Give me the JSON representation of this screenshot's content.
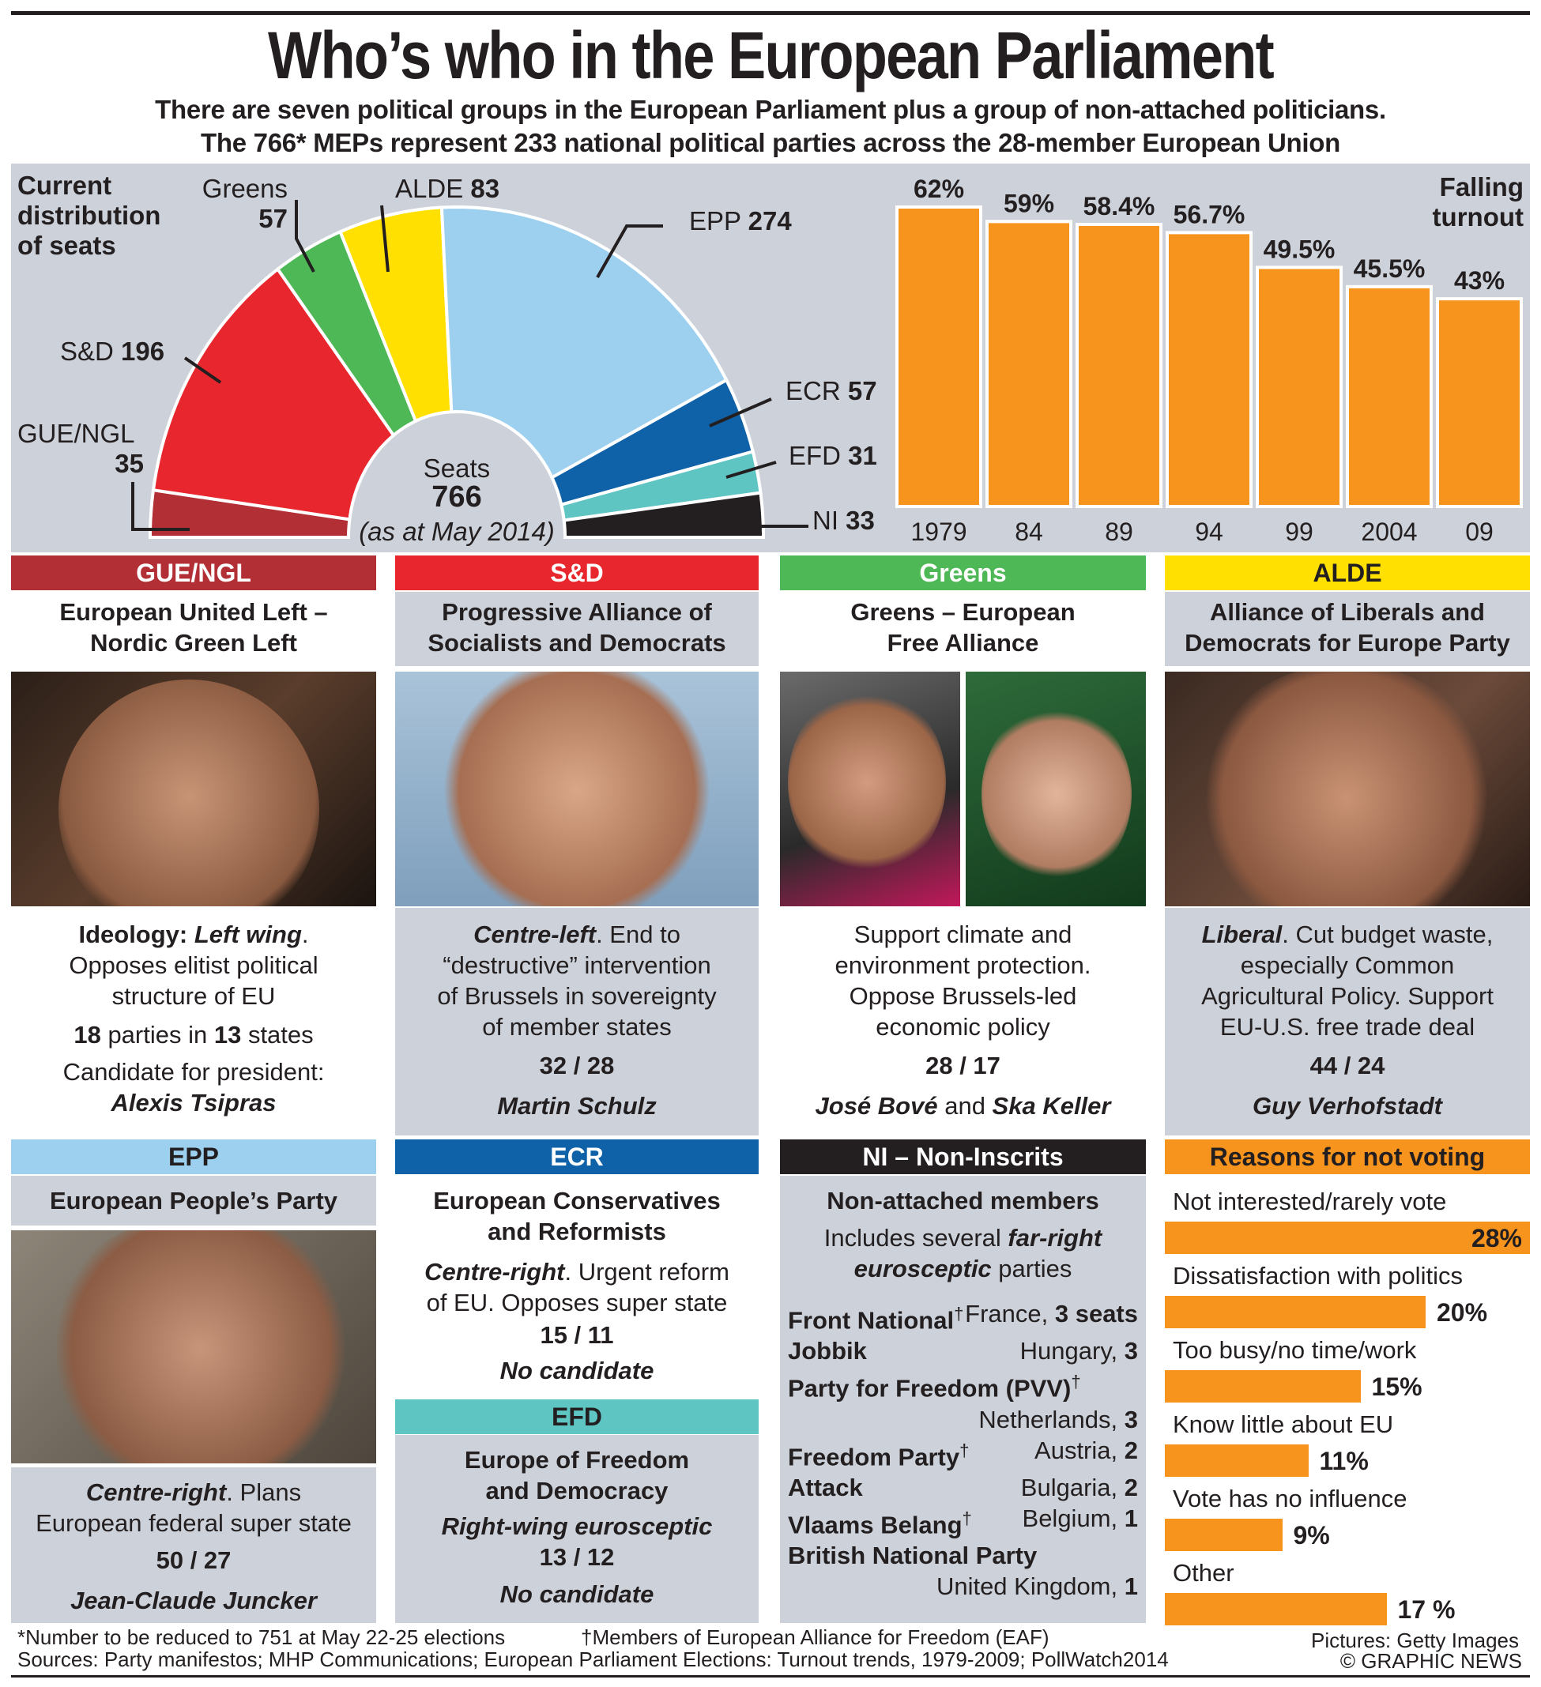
{
  "header": {
    "title": "Who’s who in the European Parliament",
    "subtitle_1": "There are seven political groups in the European Parliament plus a group of non-attached politicians.",
    "subtitle_2": "The 766* MEPs represent 233 national political parties across the 28-member European Union"
  },
  "chart_data": [
    {
      "type": "pie",
      "variant": "semicircle",
      "title": "Current\ndistribution\nof seats",
      "categories": [
        "GUE/NGL",
        "S&D",
        "Greens",
        "ALDE",
        "EPP",
        "ECR",
        "EFD",
        "NI"
      ],
      "values": [
        35,
        196,
        57,
        83,
        274,
        57,
        31,
        33
      ],
      "colors": [
        "#b22f36",
        "#e8262d",
        "#4eb857",
        "#ffe000",
        "#9dd0ef",
        "#1062a8",
        "#5ec5c3",
        "#231f20"
      ],
      "center_label": "Seats",
      "center_total": "766",
      "center_note": "(as at May 2014)"
    },
    {
      "type": "bar",
      "title": "Falling\nturnout",
      "categories": [
        "1979",
        "84",
        "89",
        "94",
        "99",
        "2004",
        "09"
      ],
      "values": [
        62,
        59,
        58.4,
        56.7,
        49.5,
        45.5,
        43
      ],
      "labels": [
        "62%",
        "59%",
        "58.4%",
        "56.7%",
        "49.5%",
        "45.5%",
        "43%"
      ],
      "ylim": [
        0,
        62
      ],
      "color": "#f7941d"
    },
    {
      "type": "bar",
      "orientation": "horizontal",
      "title": "Reasons for not voting",
      "categories": [
        "Not interested/rarely vote",
        "Dissatisfaction with politics",
        "Too busy/no time/work",
        "Know little about EU",
        "Vote has no influence",
        "Other"
      ],
      "values": [
        28,
        20,
        15,
        11,
        9,
        17
      ],
      "labels": [
        "28%",
        "20%",
        "15%",
        "11%",
        "9%",
        "17 %"
      ],
      "color": "#f7941d"
    }
  ],
  "groups": {
    "gue": {
      "header": "GUE/NGL",
      "name": "European United Left –\nNordic Green Left",
      "lead_b": "Ideology: ",
      "lead_bi": "Left wing",
      "desc": ".\nOpposes elitist political\nstructure of EU",
      "parties_n": "18",
      "parties_mid": " parties in ",
      "states_n": "13",
      "states_end": " states",
      "cand_label": "Candidate for president:",
      "candidate": "Alexis Tsipras",
      "color": "#b22f36"
    },
    "sd": {
      "header": "S&D",
      "name": "Progressive Alliance of\nSocialists and Democrats",
      "lead_bi": "Centre-left",
      "desc": ". End to\n“destructive” intervention\nof Brussels in sovereignty\nof member states",
      "stats": "32 / 28",
      "candidate": "Martin Schulz",
      "color": "#e8262d"
    },
    "greens": {
      "header": "Greens",
      "name": "Greens – European\nFree Alliance",
      "desc": "Support climate and\nenvironment protection.\nOppose Brussels-led\neconomic policy",
      "stats": "28 / 17",
      "candidate_1": "José Bové",
      "and": " and ",
      "candidate_2": "Ska Keller",
      "color": "#4eb857"
    },
    "alde": {
      "header": "ALDE",
      "name": "Alliance of Liberals and\nDemocrats for Europe Party",
      "lead_bi": "Liberal",
      "desc": ". Cut budget waste,\nespecially Common\nAgricultural Policy. Support\nEU-U.S. free trade deal",
      "stats": "44 / 24",
      "candidate": "Guy Verhofstadt",
      "color": "#ffe000"
    },
    "epp": {
      "header": "EPP",
      "name": "European People’s Party",
      "lead_bi": "Centre-right",
      "desc": ". Plans\nEuropean federal super state",
      "stats": "50 / 27",
      "candidate": "Jean-Claude Juncker",
      "color": "#9dd0ef"
    },
    "ecr": {
      "header": "ECR",
      "name": "European Conservatives\nand Reformists",
      "lead_bi": "Centre-right",
      "desc": ". Urgent reform\nof EU. Opposes super state",
      "stats": "15 / 11",
      "candidate": "No candidate",
      "color": "#1062a8"
    },
    "efd": {
      "header": "EFD",
      "name": "Europe of Freedom\nand Democracy",
      "lead_bi": "Right-wing eurosceptic",
      "stats": "13 / 12",
      "candidate": "No candidate",
      "color": "#5ec5c3"
    },
    "ni": {
      "header": "NI – Non-Inscrits",
      "name": "Non-attached members",
      "intro_1": "Includes several ",
      "intro_bi_1": "far-right",
      "intro_bi_2": "eurosceptic",
      "intro_2": " parties",
      "color": "#231f20",
      "parties": [
        {
          "name": "Front National",
          "dagger": "†",
          "country": "France, ",
          "seats": "3 seats"
        },
        {
          "name": "Jobbik",
          "dagger": "",
          "country": "Hungary, ",
          "seats": "3"
        },
        {
          "name": "Party for Freedom (PVV)",
          "dagger": "†",
          "country": "Netherlands, ",
          "seats": "3"
        },
        {
          "name": "Freedom Party",
          "dagger": "†",
          "country": "Austria, ",
          "seats": "2"
        },
        {
          "name": "Attack",
          "dagger": "",
          "country": "Bulgaria, ",
          "seats": "2"
        },
        {
          "name": "Vlaams Belang",
          "dagger": "†",
          "country": "Belgium, ",
          "seats": "1"
        },
        {
          "name": "British National Party",
          "dagger": "",
          "country": "United Kingdom, ",
          "seats": "1"
        }
      ]
    }
  },
  "footer": {
    "note_1": "*Number to be reduced to 751 at May 22-25 elections",
    "note_2": "†Members of European Alliance for Freedom (EAF)",
    "sources": "Sources: Party manifestos; MHP Communications; European Parliament Elections: Turnout trends, 1979-2009; PollWatch2014",
    "pictures": "Pictures: Getty Images",
    "copyright": "© GRAPHIC NEWS"
  }
}
